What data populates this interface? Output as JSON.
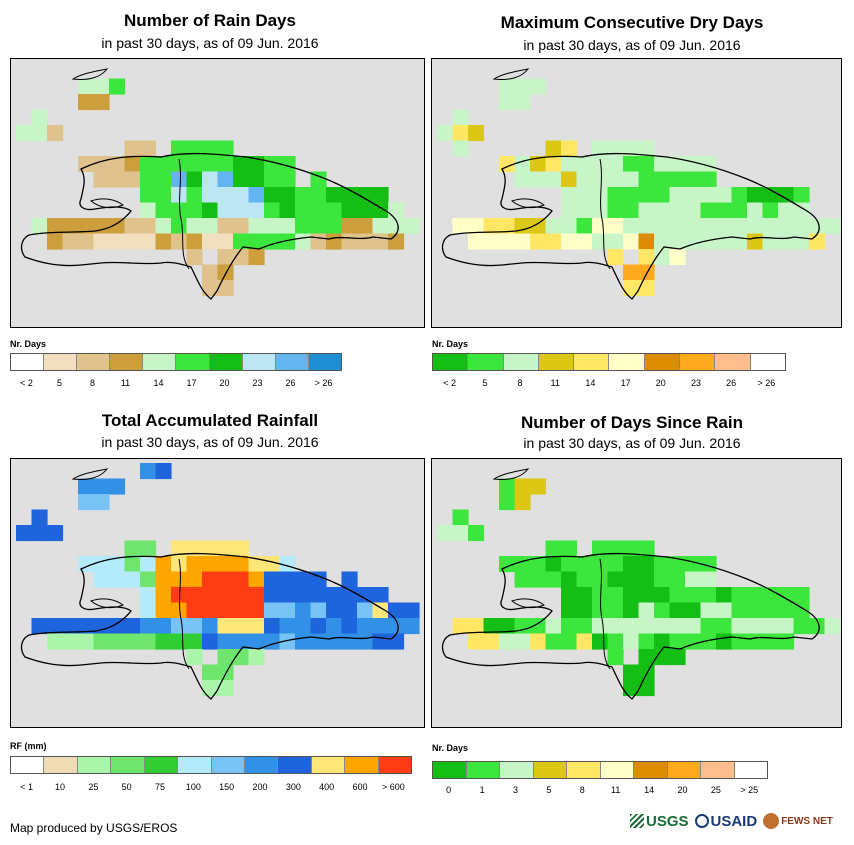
{
  "credit": "Map produced by USGS/EROS",
  "logos": [
    {
      "name": "USGS",
      "text": "USGS"
    },
    {
      "name": "USAID",
      "text": "USAID"
    },
    {
      "name": "FEWS NET",
      "text": "FEWS NET"
    }
  ],
  "panels": [
    {
      "title": "Number of Rain Days",
      "subtitle": "in past 30 days, as of 09 Jun. 2016",
      "legend_title": "Nr. Days",
      "colors": [
        "#ffffff",
        "#f2dfc0",
        "#e0c28c",
        "#cc9e3c",
        "#c8f5c8",
        "#3de63d",
        "#14be14",
        "#bde6f5",
        "#64b4f0",
        "#1e8fd2"
      ],
      "labels": [
        "< 2",
        "5",
        "8",
        "11",
        "14",
        "17",
        "20",
        "23",
        "26",
        "> 26"
      ],
      "grid": [
        "...........................",
        "....445....................",
        "....33.....................",
        ".4.........................",
        "442........................",
        ".......22.5555.............",
        "....22235555556655.........",
        ".....2225586786655.5.......",
        "........5575777866556666...",
        "........45556777565556664..",
        ".4333332245442244455533444.",
        "..32211113231155554232223..",
        "...........2.223...........",
        "............23.............",
        "............22.............",
        "..........................."
      ]
    },
    {
      "title": "Maximum Consecutive Dry Days",
      "subtitle": "in past 30 days, as of 09 Jun. 2016",
      "legend_title": "Nr. Days",
      "colors": [
        "#14be14",
        "#3de63d",
        "#c8f5c8",
        "#dcc814",
        "#ffe664",
        "#ffffc8",
        "#dc8c00",
        "#ffaa1e",
        "#ffbe8c",
        "#ffffff"
      ],
      "labels": [
        "< 2",
        "5",
        "8",
        "11",
        "14",
        "17",
        "20",
        "23",
        "26",
        "> 26"
      ],
      "grid": [
        "...........................",
        "....222....................",
        "....22.....................",
        ".2.........................",
        "243........................",
        ".2.....34.2222.............",
        "....42342222112222.........",
        ".....2223222211111.........",
        "........2221111222210001...",
        "........2221122221112122...",
        ".5544332215522222222222222.",
        "..55554455225622222232224..",
        "...........4.425...........",
        "............77.............",
        "............44.............",
        "..........................."
      ]
    },
    {
      "title": "Total Accumulated Rainfall",
      "subtitle": "in past 30 days, as of 09 Jun. 2016",
      "legend_title": "RF (mm)",
      "colors": [
        "#ffffff",
        "#f0dcb4",
        "#aaf5aa",
        "#6ee66e",
        "#32cd32",
        "#b4ebfa",
        "#78c3f5",
        "#3291e6",
        "#1e64dc",
        "#ffe678",
        "#ffa500",
        "#ff3c14"
      ],
      "labels": [
        "< 1",
        "10",
        "25",
        "50",
        "75",
        "100",
        "150",
        "200",
        "300",
        "400",
        "600",
        "> 600"
      ],
      "grid": [
        "........78.................",
        "....777....................",
        "....66.....................",
        ".8.........................",
        "888........................",
        ".......33.99999............",
        "....55535a9aaaa995.........",
        ".....5553aaabbba8888.8.....",
        "........5abbbbbb88888888...",
        "........5aabbbbb6676886988.",
        ".8888888776679998778787777.",
        "..22233334448777767777788..",
        "...........2.332...........",
        "............33.............",
        "............22.............",
        "..........................."
      ]
    },
    {
      "title": "Number of Days Since Rain",
      "subtitle": "in past 30 days, as of 09 Jun. 2016",
      "legend_title": "Nr. Days",
      "colors": [
        "#14be14",
        "#3de63d",
        "#c8f5c8",
        "#dcc814",
        "#ffe664",
        "#ffffc8",
        "#dc8c00",
        "#ffaa1e",
        "#ffbe8c",
        "#ffffff"
      ],
      "labels": [
        "0",
        "1",
        "3",
        "5",
        "8",
        "11",
        "14",
        "20",
        "25",
        "> 25"
      ],
      "grid": [
        "...........................",
        "....133....................",
        "....13.....................",
        ".1.........................",
        "221........................",
        ".......11.1111.............",
        "....11101111001111.........",
        ".....1110110001122.........",
        "........0011000111011111...",
        "........0011021002211111...",
        ".4400112112222222112222112.",
        "..442241140121011101111....",
        "...........1.000...........",
        "............00.............",
        "............00.............",
        "..........................."
      ]
    }
  ]
}
